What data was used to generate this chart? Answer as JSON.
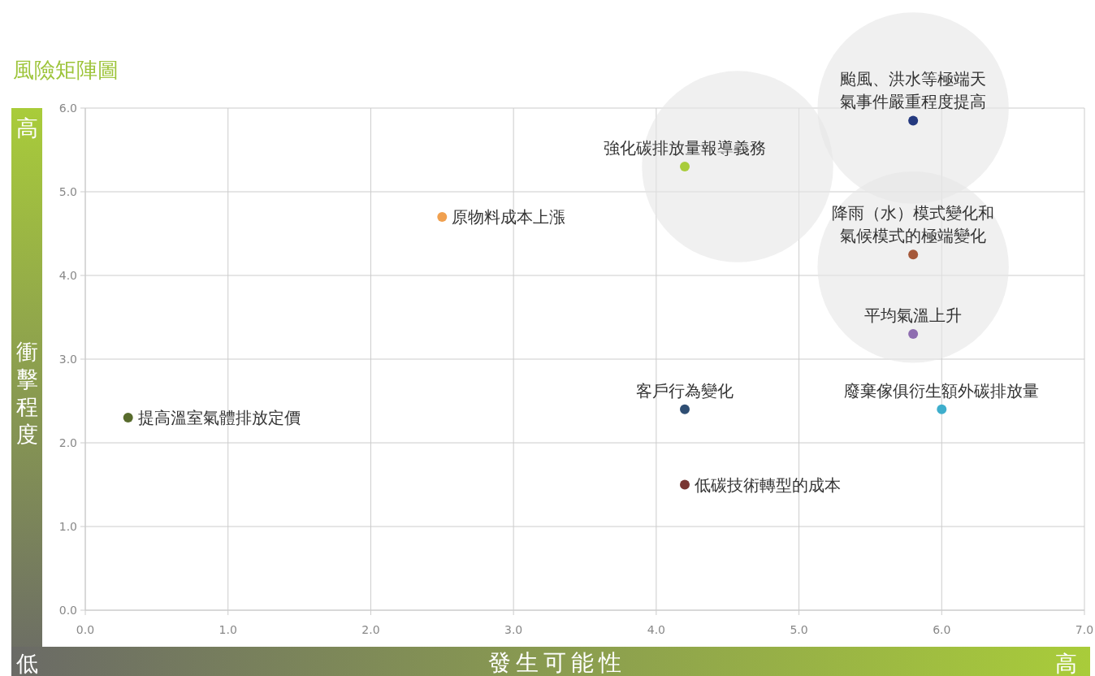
{
  "chart_data": {
    "type": "scatter",
    "title": "風險矩陣圖",
    "xlabel": "發生可能性",
    "ylabel": "衝擊程度",
    "annotations": [
      "高",
      "低",
      "高"
    ],
    "xlim": [
      0,
      7
    ],
    "ylim": [
      0,
      6
    ],
    "xticks": [
      {
        "value": 0,
        "label": "0.0"
      },
      {
        "value": 1,
        "label": "1.0"
      },
      {
        "value": 2,
        "label": "2.0"
      },
      {
        "value": 3,
        "label": "3.0"
      },
      {
        "value": 4,
        "label": "4.0"
      },
      {
        "value": 5,
        "label": "5.0"
      },
      {
        "value": 6,
        "label": "6.0"
      },
      {
        "value": 7,
        "label": "7.0"
      }
    ],
    "yticks": [
      {
        "value": 0,
        "label": "0.0"
      },
      {
        "value": 1,
        "label": "1.0"
      },
      {
        "value": 2,
        "label": "2.0"
      },
      {
        "value": 3,
        "label": "3.0"
      },
      {
        "value": 4,
        "label": "4.0"
      },
      {
        "value": 5,
        "label": "5.0"
      },
      {
        "value": 6,
        "label": "6.0"
      }
    ],
    "grid": true,
    "marker": "circle",
    "series": [
      {
        "type": "bubble",
        "color": "#e6e6e6",
        "x": [
          4.57,
          5.8,
          5.8
        ],
        "values": [
          5.3,
          6.0,
          4.1
        ],
        "sizes": [
          1,
          1,
          1
        ]
      },
      {
        "name": "提高溫室氣體排放定價",
        "color": "#586b2c",
        "x": [
          0.3
        ],
        "values": [
          2.3
        ]
      },
      {
        "name": "原物料成本上漲",
        "color": "#f0a04f",
        "x": [
          2.5
        ],
        "values": [
          4.7
        ]
      },
      {
        "name": "強化碳排放量報導義務",
        "color": "#a8cc3a",
        "x": [
          4.2
        ],
        "values": [
          5.3
        ]
      },
      {
        "name": "颱風、洪水等極端天氣事件嚴重程度提高",
        "color": "#24397f",
        "x": [
          5.8
        ],
        "values": [
          5.85
        ]
      },
      {
        "name": "降雨（水）模式變化和氣候模式的極端變化",
        "color": "#a5583a",
        "x": [
          5.8
        ],
        "values": [
          4.25
        ]
      },
      {
        "name": "平均氣溫上升",
        "color": "#8e6db0",
        "x": [
          5.8
        ],
        "values": [
          3.3
        ]
      },
      {
        "name": "客戶行為變化",
        "color": "#2f4e73",
        "x": [
          4.2
        ],
        "values": [
          2.4
        ]
      },
      {
        "name": "廢棄傢俱衍生額外碳排放量",
        "color": "#3eaecc",
        "x": [
          6.0
        ],
        "values": [
          2.4
        ]
      },
      {
        "name": "低碳技術轉型的成本",
        "color": "#7a3632",
        "x": [
          4.2
        ],
        "values": [
          1.5
        ]
      }
    ]
  }
}
